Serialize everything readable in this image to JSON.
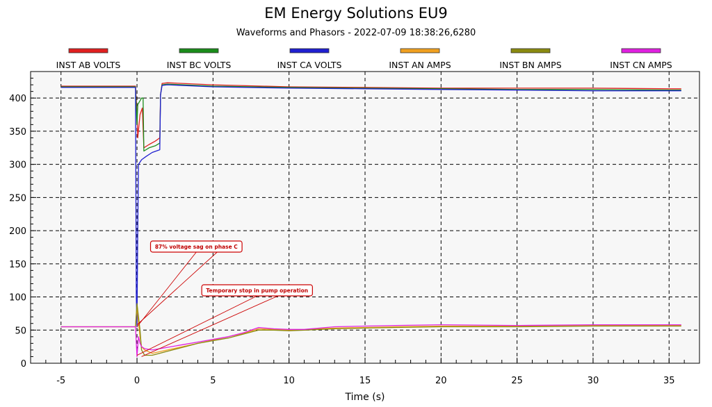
{
  "chart_data": {
    "type": "line",
    "title": "EM Energy Solutions EU9",
    "subtitle": "Waveforms and Phasors - 2022-07-09 18:38:26,6280",
    "xlabel": "Time (s)",
    "ylabel": "",
    "xlim": [
      -7,
      37
    ],
    "ylim": [
      0,
      440
    ],
    "x_ticks": [
      -5,
      0,
      5,
      10,
      15,
      20,
      25,
      30,
      35
    ],
    "y_ticks": [
      0,
      50,
      100,
      150,
      200,
      250,
      300,
      350,
      400
    ],
    "grid": true,
    "legend_position": "top",
    "colors": {
      "plot_background": "#f7f7f7",
      "grid": "#000000",
      "annotation": "#cc0000"
    },
    "series": [
      {
        "name": "INST AB VOLTS",
        "color": "#e02020",
        "points": [
          [
            -5,
            418
          ],
          [
            -0.1,
            418
          ],
          [
            0.0,
            380
          ],
          [
            0.05,
            340
          ],
          [
            0.2,
            375
          ],
          [
            0.35,
            385
          ],
          [
            0.45,
            325
          ],
          [
            0.8,
            330
          ],
          [
            1.2,
            335
          ],
          [
            1.5,
            340
          ],
          [
            1.55,
            405
          ],
          [
            1.65,
            422
          ],
          [
            2,
            423
          ],
          [
            5,
            420
          ],
          [
            10,
            417
          ],
          [
            15,
            416
          ],
          [
            20,
            415
          ],
          [
            25,
            415
          ],
          [
            30,
            415
          ],
          [
            35,
            414
          ],
          [
            35.8,
            414
          ]
        ]
      },
      {
        "name": "INST BC VOLTS",
        "color": "#1a8c1a",
        "points": [
          [
            -5,
            417
          ],
          [
            -0.1,
            417
          ],
          [
            0.0,
            360
          ],
          [
            0.05,
            390
          ],
          [
            0.3,
            400
          ],
          [
            0.4,
            400
          ],
          [
            0.45,
            320
          ],
          [
            0.8,
            325
          ],
          [
            1.2,
            328
          ],
          [
            1.5,
            332
          ],
          [
            1.55,
            405
          ],
          [
            1.65,
            420
          ],
          [
            2,
            421
          ],
          [
            5,
            418
          ],
          [
            10,
            416
          ],
          [
            15,
            415
          ],
          [
            20,
            414
          ],
          [
            25,
            413
          ],
          [
            30,
            413
          ],
          [
            35,
            412
          ],
          [
            35.8,
            412
          ]
        ]
      },
      {
        "name": "INST CA VOLTS",
        "color": "#1f1fd0",
        "points": [
          [
            -5,
            416
          ],
          [
            -0.1,
            416
          ],
          [
            -0.05,
            100
          ],
          [
            0.0,
            55
          ],
          [
            0.05,
            200
          ],
          [
            0.1,
            300
          ],
          [
            0.3,
            307
          ],
          [
            0.6,
            312
          ],
          [
            1.0,
            318
          ],
          [
            1.5,
            322
          ],
          [
            1.55,
            405
          ],
          [
            1.65,
            419
          ],
          [
            2,
            420
          ],
          [
            5,
            417
          ],
          [
            10,
            415
          ],
          [
            15,
            414
          ],
          [
            20,
            413
          ],
          [
            25,
            412
          ],
          [
            30,
            411
          ],
          [
            35,
            411
          ],
          [
            35.8,
            411
          ]
        ]
      },
      {
        "name": "INST AN AMPS",
        "color": "#f0a020",
        "points": [
          [
            -5,
            55
          ],
          [
            -0.1,
            55
          ],
          [
            0.0,
            85
          ],
          [
            0.1,
            60
          ],
          [
            0.2,
            40
          ],
          [
            0.3,
            25
          ],
          [
            0.5,
            20
          ],
          [
            1,
            15
          ],
          [
            2,
            20
          ],
          [
            3,
            25
          ],
          [
            4,
            30
          ],
          [
            5,
            35
          ],
          [
            6,
            40
          ],
          [
            7,
            45
          ],
          [
            8,
            52
          ],
          [
            9,
            51
          ],
          [
            10,
            50
          ],
          [
            11,
            50
          ],
          [
            12,
            52
          ],
          [
            13,
            53
          ],
          [
            15,
            54
          ],
          [
            17,
            55
          ],
          [
            20,
            56
          ],
          [
            25,
            56
          ],
          [
            30,
            57
          ],
          [
            35,
            57
          ],
          [
            35.8,
            57
          ]
        ]
      },
      {
        "name": "INST BN AMPS",
        "color": "#8a8a10",
        "points": [
          [
            -5,
            55
          ],
          [
            -0.1,
            55
          ],
          [
            0.0,
            90
          ],
          [
            0.1,
            70
          ],
          [
            0.2,
            50
          ],
          [
            0.3,
            20
          ],
          [
            0.5,
            12
          ],
          [
            1,
            12
          ],
          [
            2,
            18
          ],
          [
            3,
            24
          ],
          [
            4,
            30
          ],
          [
            5,
            34
          ],
          [
            6,
            38
          ],
          [
            7,
            44
          ],
          [
            8,
            50
          ],
          [
            9,
            50
          ],
          [
            10,
            49
          ],
          [
            11,
            50
          ],
          [
            12,
            51
          ],
          [
            13,
            52
          ],
          [
            15,
            53
          ],
          [
            17,
            54
          ],
          [
            20,
            55
          ],
          [
            25,
            55
          ],
          [
            30,
            56
          ],
          [
            35,
            56
          ],
          [
            35.8,
            56
          ]
        ]
      },
      {
        "name": "INST CN AMPS",
        "color": "#e020e0",
        "points": [
          [
            -5,
            55
          ],
          [
            -0.1,
            55
          ],
          [
            0.0,
            10
          ],
          [
            0.1,
            40
          ],
          [
            0.2,
            30
          ],
          [
            0.3,
            25
          ],
          [
            0.5,
            22
          ],
          [
            1,
            20
          ],
          [
            2,
            24
          ],
          [
            3,
            28
          ],
          [
            4,
            32
          ],
          [
            5,
            36
          ],
          [
            6,
            40
          ],
          [
            7,
            46
          ],
          [
            8,
            54
          ],
          [
            9,
            52
          ],
          [
            10,
            51
          ],
          [
            11,
            51
          ],
          [
            12,
            53
          ],
          [
            13,
            55
          ],
          [
            15,
            56
          ],
          [
            17,
            57
          ],
          [
            20,
            58
          ],
          [
            25,
            57
          ],
          [
            30,
            58
          ],
          [
            35,
            58
          ],
          [
            35.8,
            58
          ]
        ]
      }
    ],
    "annotations": [
      {
        "text": "87% voltage sag on phase C",
        "box_anchor": [
          3.9,
          176
        ],
        "targets": [
          [
            0,
            55
          ],
          [
            0,
            58
          ]
        ]
      },
      {
        "text": "Temporary stop in pump operation",
        "box_anchor": [
          7.9,
          110
        ],
        "targets": [
          [
            0,
            12
          ],
          [
            0.3,
            10
          ]
        ]
      }
    ]
  }
}
